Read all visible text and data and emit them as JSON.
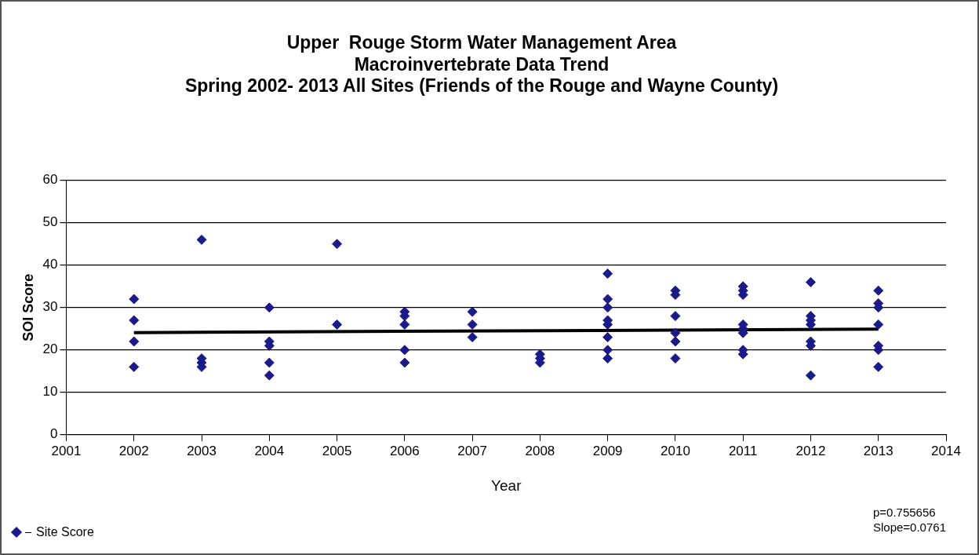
{
  "chart_data": {
    "type": "scatter",
    "title": "Upper  Rouge Storm Water Management Area\nMacroinvertebrate Data Trend\nSpring 2002- 2013 All Sites (Friends of the Rouge and Wayne County)",
    "xlabel": "Year",
    "ylabel": "SOI Score",
    "xlim": [
      2001,
      2014
    ],
    "xticks": [
      2001,
      2002,
      2003,
      2004,
      2005,
      2006,
      2007,
      2008,
      2009,
      2010,
      2011,
      2012,
      2013,
      2014
    ],
    "ylim": [
      0,
      60
    ],
    "yticks": [
      0,
      10,
      20,
      30,
      40,
      50,
      60
    ],
    "grid": "y",
    "legend": "bottom left",
    "annotations": [
      "p=0.755656",
      "Slope=0.0761"
    ],
    "series": [
      {
        "name": "Site Score",
        "marker": "diamond",
        "color": "#1a1a8c",
        "x": [
          2002,
          2002,
          2002,
          2002,
          2003,
          2003,
          2003,
          2003,
          2004,
          2004,
          2004,
          2004,
          2004,
          2005,
          2005,
          2006,
          2006,
          2006,
          2006,
          2006,
          2007,
          2007,
          2007,
          2008,
          2008,
          2008,
          2009,
          2009,
          2009,
          2009,
          2009,
          2009,
          2009,
          2009,
          2010,
          2010,
          2010,
          2010,
          2010,
          2010,
          2011,
          2011,
          2011,
          2011,
          2011,
          2011,
          2011,
          2011,
          2012,
          2012,
          2012,
          2012,
          2012,
          2012,
          2012,
          2013,
          2013,
          2013,
          2013,
          2013,
          2013,
          2013
        ],
        "values": [
          32,
          27,
          22,
          16,
          46,
          18,
          17,
          16,
          30,
          22,
          21,
          17,
          14,
          45,
          26,
          29,
          28,
          26,
          20,
          17,
          29,
          26,
          23,
          19,
          18,
          17,
          38,
          32,
          30,
          27,
          26,
          23,
          20,
          18,
          34,
          33,
          28,
          24,
          22,
          18,
          35,
          34,
          33,
          26,
          25,
          24,
          20,
          19,
          36,
          28,
          27,
          26,
          22,
          21,
          14,
          34,
          31,
          30,
          26,
          21,
          20,
          16
        ]
      },
      {
        "type": "line",
        "marker": "none",
        "color": "#000000",
        "x": [
          2002,
          2013
        ],
        "values": [
          24.1,
          24.9
        ]
      }
    ]
  }
}
